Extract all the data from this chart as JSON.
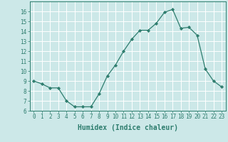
{
  "x": [
    0,
    1,
    2,
    3,
    4,
    5,
    6,
    7,
    8,
    9,
    10,
    11,
    12,
    13,
    14,
    15,
    16,
    17,
    18,
    19,
    20,
    21,
    22,
    23
  ],
  "y": [
    9.0,
    8.7,
    8.3,
    8.3,
    7.0,
    6.4,
    6.4,
    6.4,
    7.7,
    9.5,
    10.6,
    12.0,
    13.2,
    14.1,
    14.1,
    14.8,
    15.9,
    16.2,
    14.3,
    14.4,
    13.6,
    10.2,
    9.0,
    8.4
  ],
  "line_color": "#2e7d6e",
  "marker": "D",
  "marker_size": 2.2,
  "bg_color": "#cce8e8",
  "grid_color": "#ffffff",
  "xlabel": "Humidex (Indice chaleur)",
  "xlim": [
    -0.5,
    23.5
  ],
  "ylim": [
    6,
    17
  ],
  "yticks": [
    6,
    7,
    8,
    9,
    10,
    11,
    12,
    13,
    14,
    15,
    16
  ],
  "xticks": [
    0,
    1,
    2,
    3,
    4,
    5,
    6,
    7,
    8,
    9,
    10,
    11,
    12,
    13,
    14,
    15,
    16,
    17,
    18,
    19,
    20,
    21,
    22,
    23
  ],
  "tick_label_size": 5.5,
  "xlabel_size": 7.0,
  "label_color": "#2e7d6e"
}
